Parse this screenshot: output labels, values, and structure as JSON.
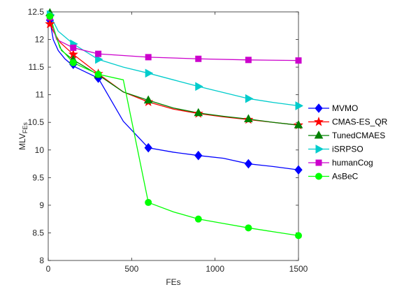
{
  "chart_data": {
    "type": "line",
    "xlabel": "FEs",
    "ylabel": "MLV",
    "ylabel_sub": "FEs",
    "xlim": [
      0,
      1500
    ],
    "ylim": [
      8,
      12.5
    ],
    "x_ticks": [
      0,
      500,
      1000,
      1500
    ],
    "x_tick_labels": [
      "0",
      "500",
      "1000",
      "1500"
    ],
    "y_ticks": [
      8,
      8.5,
      9,
      9.5,
      10,
      10.5,
      11,
      11.5,
      12,
      12.5
    ],
    "y_tick_labels": [
      "8",
      "8.5",
      "9",
      "9.5",
      "10",
      "10.5",
      "11",
      "11.5",
      "12",
      "12.5"
    ],
    "grid": false,
    "legend_position": "outside-right",
    "series": [
      {
        "name": "MVMO",
        "color": "#0000ff",
        "marker": "diamond",
        "line": [
          [
            10,
            12.35
          ],
          [
            30,
            12.0
          ],
          [
            60,
            11.8
          ],
          [
            100,
            11.65
          ],
          [
            150,
            11.52
          ],
          [
            300,
            11.3
          ],
          [
            450,
            10.52
          ],
          [
            600,
            10.04
          ],
          [
            750,
            9.96
          ],
          [
            900,
            9.9
          ],
          [
            1050,
            9.85
          ],
          [
            1200,
            9.75
          ],
          [
            1350,
            9.7
          ],
          [
            1500,
            9.64
          ]
        ],
        "markers": [
          [
            10,
            12.35
          ],
          [
            150,
            11.55
          ],
          [
            300,
            11.3
          ],
          [
            600,
            10.04
          ],
          [
            900,
            9.9
          ],
          [
            1200,
            9.75
          ],
          [
            1500,
            9.64
          ]
        ]
      },
      {
        "name": "CMAS-ES_QR",
        "color": "#ff0000",
        "marker": "star",
        "line": [
          [
            10,
            12.28
          ],
          [
            30,
            12.15
          ],
          [
            70,
            11.95
          ],
          [
            150,
            11.73
          ],
          [
            300,
            11.38
          ],
          [
            450,
            11.05
          ],
          [
            600,
            10.87
          ],
          [
            750,
            10.74
          ],
          [
            900,
            10.66
          ],
          [
            1050,
            10.6
          ],
          [
            1200,
            10.55
          ],
          [
            1350,
            10.5
          ],
          [
            1500,
            10.45
          ]
        ],
        "markers": [
          [
            10,
            12.28
          ],
          [
            150,
            11.73
          ],
          [
            300,
            11.38
          ],
          [
            600,
            10.87
          ],
          [
            900,
            10.66
          ],
          [
            1200,
            10.55
          ],
          [
            1500,
            10.45
          ]
        ]
      },
      {
        "name": "TunedCMAES",
        "color": "#008000",
        "marker": "triangle-up",
        "line": [
          [
            10,
            12.48
          ],
          [
            40,
            12.1
          ],
          [
            80,
            11.8
          ],
          [
            150,
            11.63
          ],
          [
            300,
            11.36
          ],
          [
            450,
            11.05
          ],
          [
            600,
            10.9
          ],
          [
            750,
            10.76
          ],
          [
            900,
            10.67
          ],
          [
            1050,
            10.61
          ],
          [
            1200,
            10.56
          ],
          [
            1350,
            10.5
          ],
          [
            1500,
            10.45
          ]
        ],
        "markers": [
          [
            10,
            12.48
          ],
          [
            150,
            11.63
          ],
          [
            300,
            11.36
          ],
          [
            600,
            10.9
          ],
          [
            900,
            10.67
          ],
          [
            1200,
            10.56
          ],
          [
            1500,
            10.45
          ]
        ]
      },
      {
        "name": "iSRPSO",
        "color": "#00cccc",
        "marker": "triangle-right",
        "line": [
          [
            10,
            12.45
          ],
          [
            60,
            12.15
          ],
          [
            150,
            11.92
          ],
          [
            300,
            11.64
          ],
          [
            450,
            11.5
          ],
          [
            600,
            11.39
          ],
          [
            750,
            11.27
          ],
          [
            900,
            11.15
          ],
          [
            1050,
            11.04
          ],
          [
            1200,
            10.93
          ],
          [
            1350,
            10.86
          ],
          [
            1500,
            10.8
          ]
        ],
        "markers": [
          [
            10,
            12.45
          ],
          [
            150,
            11.92
          ],
          [
            300,
            11.64
          ],
          [
            600,
            11.39
          ],
          [
            900,
            11.15
          ],
          [
            1200,
            10.93
          ],
          [
            1500,
            10.8
          ]
        ]
      },
      {
        "name": "humanCog",
        "color": "#cc00cc",
        "marker": "square",
        "line": [
          [
            10,
            12.4
          ],
          [
            50,
            12.0
          ],
          [
            150,
            11.85
          ],
          [
            300,
            11.74
          ],
          [
            600,
            11.68
          ],
          [
            900,
            11.65
          ],
          [
            1200,
            11.63
          ],
          [
            1500,
            11.62
          ]
        ],
        "markers": [
          [
            10,
            12.4
          ],
          [
            150,
            11.85
          ],
          [
            300,
            11.74
          ],
          [
            600,
            11.68
          ],
          [
            900,
            11.65
          ],
          [
            1200,
            11.63
          ],
          [
            1500,
            11.62
          ]
        ]
      },
      {
        "name": "AsBeC",
        "color": "#00ff00",
        "marker": "circle",
        "line": [
          [
            10,
            12.42
          ],
          [
            70,
            11.85
          ],
          [
            150,
            11.58
          ],
          [
            300,
            11.37
          ],
          [
            450,
            11.27
          ],
          [
            600,
            9.05
          ],
          [
            750,
            8.88
          ],
          [
            900,
            8.75
          ],
          [
            1050,
            8.67
          ],
          [
            1200,
            8.59
          ],
          [
            1350,
            8.52
          ],
          [
            1500,
            8.45
          ]
        ],
        "markers": [
          [
            10,
            12.42
          ],
          [
            150,
            11.58
          ],
          [
            300,
            11.37
          ],
          [
            600,
            9.05
          ],
          [
            900,
            8.75
          ],
          [
            1200,
            8.59
          ],
          [
            1500,
            8.45
          ]
        ]
      }
    ]
  }
}
